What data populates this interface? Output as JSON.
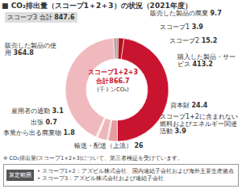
{
  "chart_data": {
    "type": "pie",
    "title": "■ CO₂排出量（スコープ1＋2＋3）の状況（2021年度）",
    "categories": [
      "スコープ1",
      "スコープ2",
      "購入した製品・サービス",
      "資本財",
      "スコープ1+2に含まれない燃料およびエネルギー関連活動",
      "輸送・配送（上流）",
      "事業から出る廃棄物",
      "出張",
      "雇用者の通勤",
      "販売した製品の使用",
      "販売した製品の廃棄"
    ],
    "values": [
      3.9,
      15.2,
      413.2,
      24.4,
      3.9,
      26,
      1.8,
      0.7,
      3.1,
      364.8,
      9.7
    ],
    "colors": [
      "#8c0c1c",
      "#b3121f",
      "#c8142f",
      "#e79aa0",
      "#f3c9cc",
      "#eeb7bb",
      "#f6d6d8",
      "#f9e3e4",
      "#f1c0c3",
      "#f0b9bd",
      "#b8a4a6"
    ],
    "data_labels": true,
    "center_title": "スコープ1+2+3",
    "center_total_label": "合計",
    "center_total": 866.7,
    "center_unit": "(千トンCO₂)",
    "scope3_label": "スコープ3 合計",
    "scope3_total": 847.6,
    "footnote": "※ CO₂排出量(スコープ1+2+3)について、第三者検証を受けています。",
    "scope_heading": "算定範囲",
    "scope_notes": [
      "• スコープ1+2：アズビル株式会社、国内連結子会社および海外主要生産拠点",
      "• スコープ3：アズビル株式会社および連結子会社"
    ]
  }
}
